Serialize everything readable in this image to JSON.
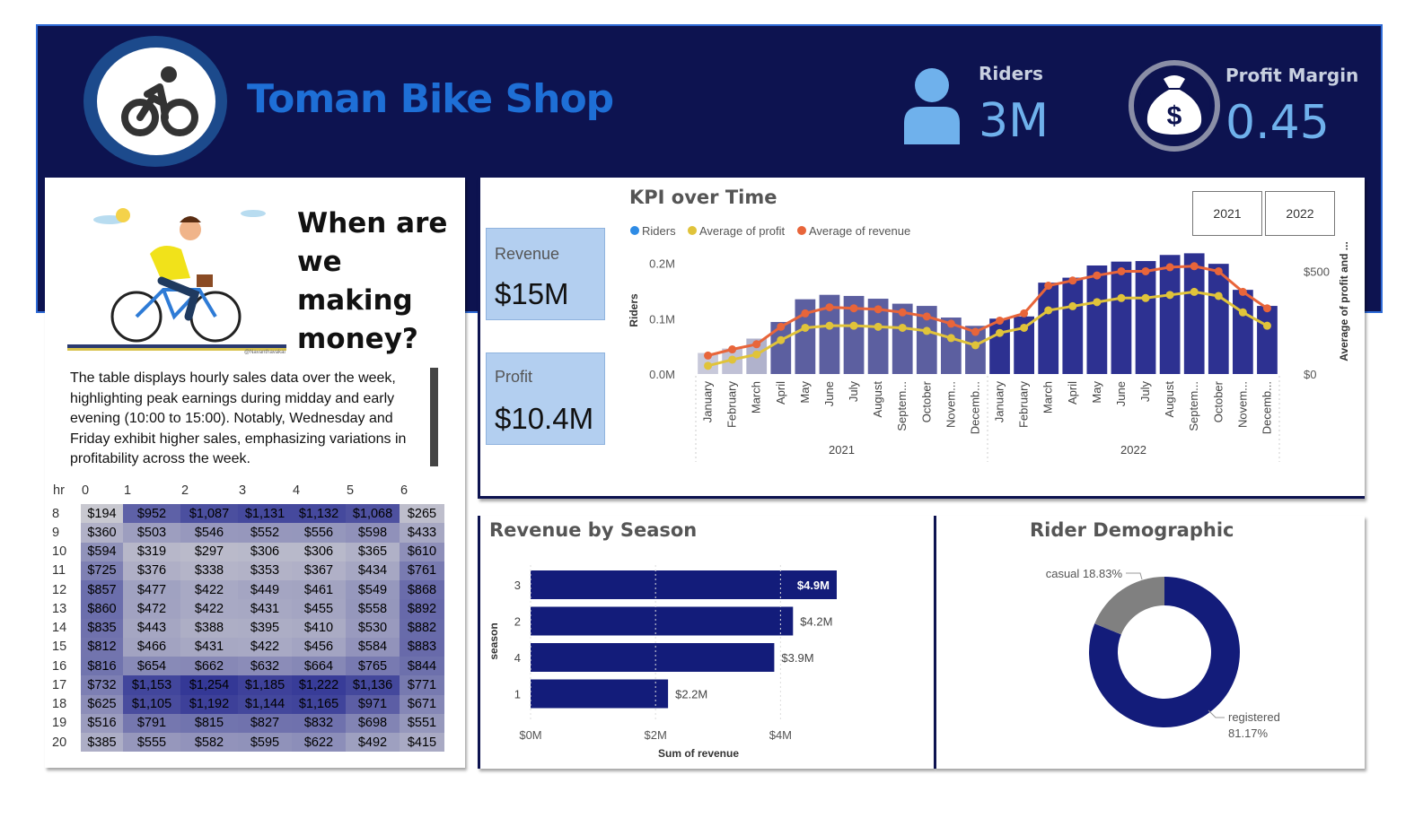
{
  "header": {
    "title": "Toman Bike Shop",
    "riders_label": "Riders",
    "riders_value": "3M",
    "margin_label": "Profit Margin",
    "margin_value": "0.45",
    "background": "#0d1350",
    "accent": "#1e6fd6"
  },
  "story": {
    "heading": "When are we making money?",
    "body": "The table displays hourly sales data over the week, highlighting peak earnings during midday and early evening (10:00 to 15:00). Notably, Wednesday and Friday exhibit higher sales, emphasizing variations in profitability across the week.",
    "credit": "@Navanthavakai"
  },
  "heatmap": {
    "corner": "hr",
    "columns": [
      "0",
      "1",
      "2",
      "3",
      "4",
      "5",
      "6"
    ],
    "rows": [
      {
        "hr": "8",
        "cells": [
          "$194",
          "$952",
          "$1,087",
          "$1,131",
          "$1,132",
          "$1,068",
          "$265"
        ]
      },
      {
        "hr": "9",
        "cells": [
          "$360",
          "$503",
          "$546",
          "$552",
          "$556",
          "$598",
          "$433"
        ]
      },
      {
        "hr": "10",
        "cells": [
          "$594",
          "$319",
          "$297",
          "$306",
          "$306",
          "$365",
          "$610"
        ]
      },
      {
        "hr": "11",
        "cells": [
          "$725",
          "$376",
          "$338",
          "$353",
          "$367",
          "$434",
          "$761"
        ]
      },
      {
        "hr": "12",
        "cells": [
          "$857",
          "$477",
          "$422",
          "$449",
          "$461",
          "$549",
          "$868"
        ]
      },
      {
        "hr": "13",
        "cells": [
          "$860",
          "$472",
          "$422",
          "$431",
          "$455",
          "$558",
          "$892"
        ]
      },
      {
        "hr": "14",
        "cells": [
          "$835",
          "$443",
          "$388",
          "$395",
          "$410",
          "$530",
          "$882"
        ]
      },
      {
        "hr": "15",
        "cells": [
          "$812",
          "$466",
          "$431",
          "$422",
          "$456",
          "$584",
          "$883"
        ]
      },
      {
        "hr": "16",
        "cells": [
          "$816",
          "$654",
          "$662",
          "$632",
          "$664",
          "$765",
          "$844"
        ]
      },
      {
        "hr": "17",
        "cells": [
          "$732",
          "$1,153",
          "$1,254",
          "$1,185",
          "$1,222",
          "$1,136",
          "$771"
        ]
      },
      {
        "hr": "18",
        "cells": [
          "$625",
          "$1,105",
          "$1,192",
          "$1,144",
          "$1,165",
          "$971",
          "$671"
        ]
      },
      {
        "hr": "19",
        "cells": [
          "$516",
          "$791",
          "$815",
          "$827",
          "$832",
          "$698",
          "$551"
        ]
      },
      {
        "hr": "20",
        "cells": [
          "$385",
          "$555",
          "$582",
          "$595",
          "$622",
          "$492",
          "$415"
        ]
      }
    ]
  },
  "cards": {
    "revenue_label": "Revenue",
    "revenue_value": "$15M",
    "profit_label": "Profit",
    "profit_value": "$10.4M"
  },
  "kpi_chart": {
    "title": "KPI over Time",
    "years": [
      "2021",
      "2022"
    ]
  },
  "chart_data": [
    {
      "type": "bar",
      "title": "KPI over Time",
      "legend": [
        "Riders",
        "Average of profit",
        "Average of revenue"
      ],
      "legend_placement": "top-left",
      "ylabel": "Riders",
      "y2label": "Average of profit and ...",
      "yticks": [
        "0.0M",
        "0.1M",
        "0.2M"
      ],
      "y2ticks": [
        "$0",
        "$500"
      ],
      "ylim": [
        0,
        0.23
      ],
      "y2lim": [
        0,
        620
      ],
      "x_groups": [
        "2021",
        "2022"
      ],
      "categories": [
        "January",
        "February",
        "March",
        "April",
        "May",
        "June",
        "July",
        "August",
        "Septem...",
        "October",
        "Novem...",
        "Decemb...",
        "January",
        "February",
        "March",
        "April",
        "May",
        "June",
        "July",
        "August",
        "Septem...",
        "October",
        "Novem...",
        "Decemb..."
      ],
      "series": [
        {
          "name": "Riders",
          "kind": "bar",
          "values": [
            0.038,
            0.046,
            0.064,
            0.094,
            0.135,
            0.143,
            0.141,
            0.136,
            0.127,
            0.123,
            0.102,
            0.087,
            0.1,
            0.104,
            0.165,
            0.174,
            0.196,
            0.203,
            0.204,
            0.215,
            0.218,
            0.199,
            0.152,
            0.123
          ]
        },
        {
          "name": "Average of profit",
          "kind": "line",
          "values": [
            40,
            70,
            95,
            165,
            225,
            235,
            235,
            230,
            225,
            210,
            175,
            140,
            200,
            225,
            310,
            330,
            350,
            370,
            370,
            385,
            400,
            380,
            300,
            235
          ]
        },
        {
          "name": "Average of revenue",
          "kind": "line",
          "values": [
            90,
            120,
            145,
            230,
            295,
            325,
            320,
            315,
            300,
            280,
            245,
            205,
            260,
            295,
            430,
            455,
            480,
            500,
            500,
            520,
            525,
            500,
            400,
            320
          ]
        }
      ],
      "colors": {
        "bars_2021": "#5c5fa0",
        "bars_2022": "#2d3191",
        "profit": "#e0c33a",
        "revenue": "#e8653a",
        "riders": "#2e8be5"
      },
      "grid": false
    },
    {
      "type": "bar",
      "orientation": "horizontal",
      "title": "Revenue by Season",
      "categories": [
        "3",
        "2",
        "4",
        "1"
      ],
      "values": [
        4.9,
        4.2,
        3.9,
        2.2
      ],
      "data_labels": [
        "$4.9M",
        "$4.2M",
        "$3.9M",
        "$2.2M"
      ],
      "xlabel": "Sum of revenue",
      "ylabel": "season",
      "xticks": [
        "$0M",
        "$2M",
        "$4M"
      ],
      "xlim": [
        0,
        5.0
      ],
      "color": "#131c7a"
    },
    {
      "type": "pie",
      "donut": true,
      "title": "Rider Demographic",
      "slices": [
        {
          "name": "registered",
          "value": 81.17,
          "label_name": "registered",
          "label_value": "81.17%",
          "color": "#131c7a"
        },
        {
          "name": "casual",
          "value": 18.83,
          "label": "casual 18.83%",
          "color": "#808080"
        }
      ]
    }
  ]
}
